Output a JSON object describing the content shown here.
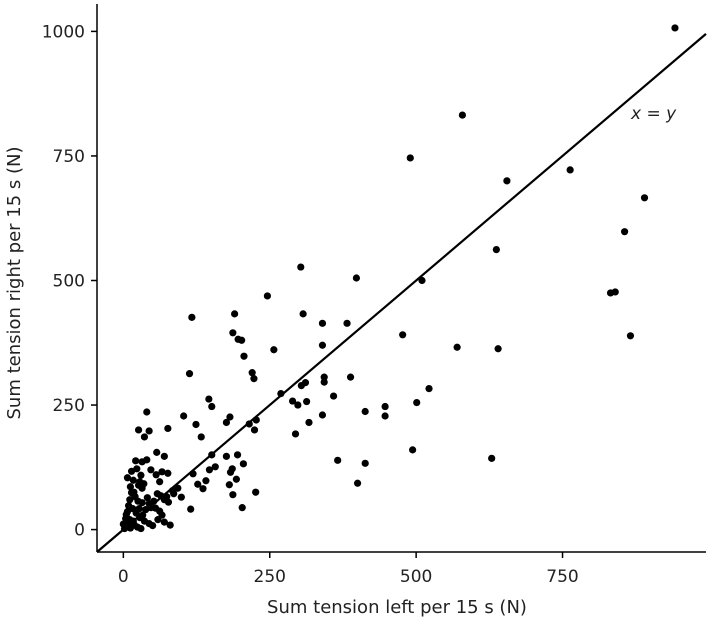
{
  "chart_data": {
    "type": "scatter",
    "xlabel": "Sum tension left per 15 s (N)",
    "ylabel": "Sum tension right per 15 s (N)",
    "xlim": [
      -45,
      995
    ],
    "ylim": [
      -45,
      1055
    ],
    "x_ticks": [
      0,
      250,
      500,
      750
    ],
    "y_ticks": [
      0,
      250,
      500,
      750,
      1000
    ],
    "x_tick_labels": [
      "0",
      "250",
      "500",
      "750"
    ],
    "y_tick_labels": [
      "0",
      "250",
      "500",
      "750",
      "1000"
    ],
    "grid": false,
    "legend": "none",
    "reference_line": {
      "type": "identity",
      "label": "x = y"
    },
    "point_color": "#000000",
    "points": [
      [
        942,
        1007
      ],
      [
        579,
        832
      ],
      [
        490,
        746
      ],
      [
        655,
        700
      ],
      [
        763,
        722
      ],
      [
        890,
        666
      ],
      [
        856,
        598
      ],
      [
        637,
        562
      ],
      [
        832,
        475
      ],
      [
        840,
        477
      ],
      [
        866,
        389
      ],
      [
        303,
        527
      ],
      [
        398,
        505
      ],
      [
        510,
        500
      ],
      [
        246,
        469
      ],
      [
        190,
        433
      ],
      [
        117,
        426
      ],
      [
        307,
        433
      ],
      [
        340,
        414
      ],
      [
        382,
        414
      ],
      [
        477,
        391
      ],
      [
        187,
        395
      ],
      [
        196,
        382
      ],
      [
        202,
        380
      ],
      [
        206,
        348
      ],
      [
        257,
        361
      ],
      [
        340,
        370
      ],
      [
        570,
        366
      ],
      [
        640,
        363
      ],
      [
        113,
        313
      ],
      [
        220,
        315
      ],
      [
        223,
        303
      ],
      [
        343,
        306
      ],
      [
        388,
        306
      ],
      [
        146,
        262
      ],
      [
        151,
        247
      ],
      [
        269,
        273
      ],
      [
        304,
        289
      ],
      [
        311,
        295
      ],
      [
        343,
        296
      ],
      [
        359,
        268
      ],
      [
        413,
        237
      ],
      [
        289,
        258
      ],
      [
        298,
        250
      ],
      [
        313,
        257
      ],
      [
        522,
        283
      ],
      [
        447,
        247
      ],
      [
        447,
        228
      ],
      [
        501,
        255
      ],
      [
        340,
        230
      ],
      [
        294,
        192
      ],
      [
        317,
        215
      ],
      [
        182,
        226
      ],
      [
        176,
        215
      ],
      [
        103,
        228
      ],
      [
        124,
        211
      ],
      [
        227,
        220
      ],
      [
        215,
        212
      ],
      [
        224,
        200
      ],
      [
        133,
        186
      ],
      [
        40,
        236
      ],
      [
        26,
        200
      ],
      [
        44,
        198
      ],
      [
        76,
        203
      ],
      [
        36,
        186
      ],
      [
        195,
        150
      ],
      [
        176,
        147
      ],
      [
        205,
        132
      ],
      [
        186,
        122
      ],
      [
        193,
        101
      ],
      [
        181,
        90
      ],
      [
        151,
        150
      ],
      [
        147,
        120
      ],
      [
        157,
        126
      ],
      [
        141,
        98
      ],
      [
        136,
        82
      ],
      [
        119,
        112
      ],
      [
        127,
        91
      ],
      [
        366,
        139
      ],
      [
        413,
        133
      ],
      [
        494,
        160
      ],
      [
        629,
        143
      ],
      [
        400,
        93
      ],
      [
        226,
        75
      ],
      [
        187,
        70
      ],
      [
        203,
        44
      ],
      [
        183,
        115
      ],
      [
        99,
        65
      ],
      [
        115,
        41
      ],
      [
        70,
        147
      ],
      [
        57,
        155
      ],
      [
        40,
        140
      ],
      [
        32,
        136
      ],
      [
        21,
        138
      ],
      [
        23,
        122
      ],
      [
        14,
        117
      ],
      [
        7,
        104
      ],
      [
        17,
        99
      ],
      [
        28,
        96
      ],
      [
        32,
        83
      ],
      [
        47,
        120
      ],
      [
        56,
        110
      ],
      [
        62,
        96
      ],
      [
        66,
        116
      ],
      [
        76,
        113
      ],
      [
        84,
        78
      ],
      [
        93,
        83
      ],
      [
        58,
        72
      ],
      [
        64,
        68
      ],
      [
        74,
        66
      ],
      [
        70,
        60
      ],
      [
        77,
        55
      ],
      [
        86,
        72
      ],
      [
        52,
        57
      ],
      [
        44,
        52
      ],
      [
        47,
        44
      ],
      [
        38,
        40
      ],
      [
        55,
        43
      ],
      [
        62,
        37
      ],
      [
        66,
        29
      ],
      [
        59,
        20
      ],
      [
        70,
        15
      ],
      [
        80,
        9
      ],
      [
        25,
        57
      ],
      [
        20,
        66
      ],
      [
        14,
        74
      ],
      [
        11,
        60
      ],
      [
        9,
        48
      ],
      [
        16,
        42
      ],
      [
        7,
        36
      ],
      [
        5,
        30
      ],
      [
        22,
        33
      ],
      [
        28,
        24
      ],
      [
        36,
        17
      ],
      [
        44,
        12
      ],
      [
        50,
        8
      ],
      [
        17,
        17
      ],
      [
        11,
        20
      ],
      [
        6,
        15
      ],
      [
        3,
        9
      ],
      [
        8,
        6
      ],
      [
        12,
        3
      ],
      [
        2,
        2
      ],
      [
        19,
        9
      ],
      [
        24,
        5
      ],
      [
        30,
        2
      ],
      [
        33,
        29
      ],
      [
        41,
        64
      ],
      [
        35,
        92
      ],
      [
        30,
        109
      ],
      [
        26,
        89
      ],
      [
        12,
        86
      ],
      [
        18,
        75
      ],
      [
        4,
        22
      ],
      [
        0,
        11
      ],
      [
        27,
        42
      ],
      [
        32,
        54
      ]
    ]
  }
}
